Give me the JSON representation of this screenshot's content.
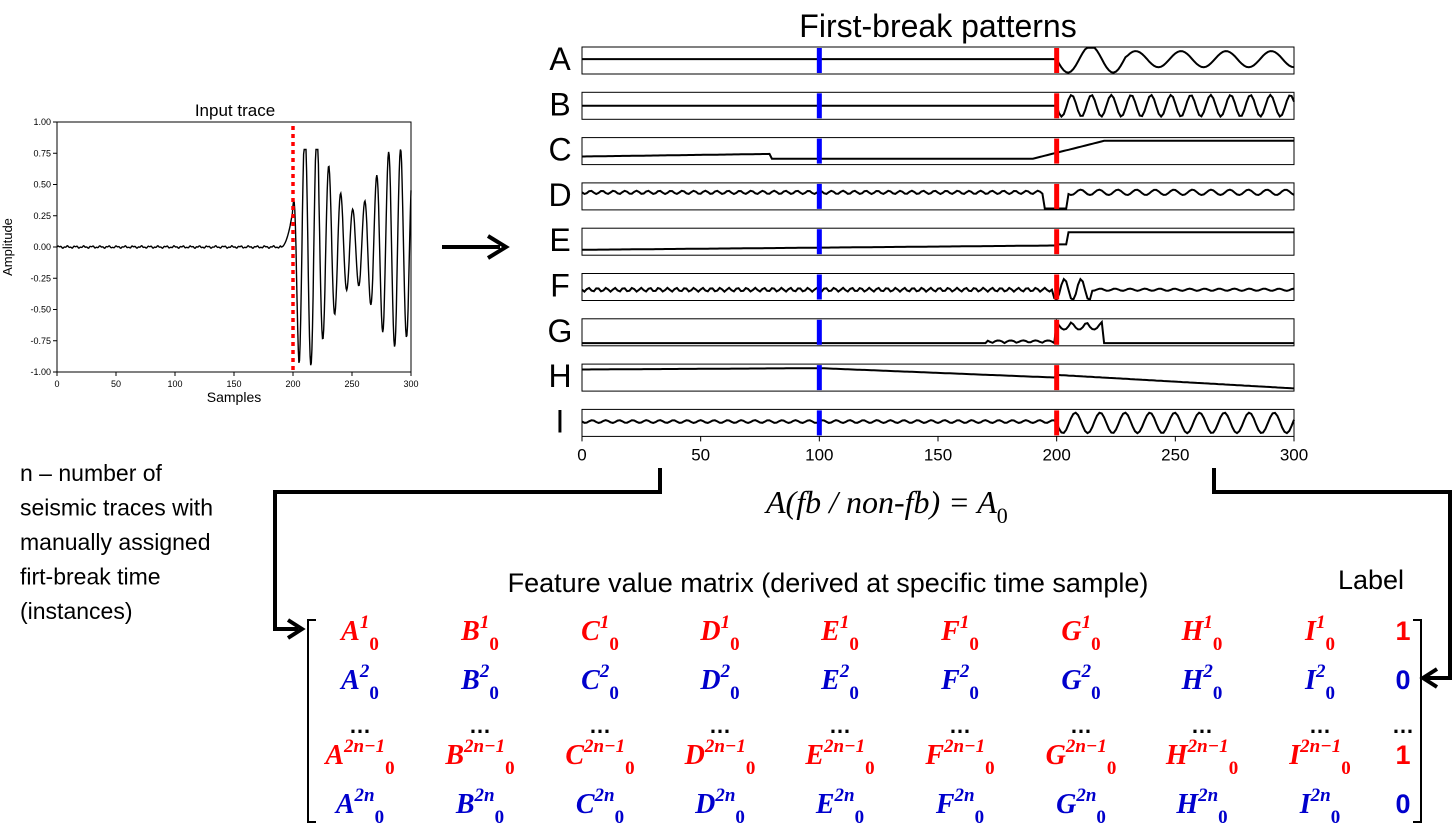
{
  "input_trace": {
    "title": "Input trace",
    "xlabel": "Samples",
    "ylabel": "Amplitude",
    "x_ticks": [
      "0",
      "50",
      "100",
      "150",
      "200",
      "250",
      "300"
    ],
    "y_ticks": [
      "1.00",
      "0.75",
      "0.50",
      "0.25",
      "0.00",
      "-0.25",
      "-0.50",
      "-0.75",
      "-1.00"
    ],
    "first_break_sample": 200,
    "marker_color": "#ff0000"
  },
  "patterns": {
    "title": "First-break patterns",
    "labels": [
      "A",
      "B",
      "C",
      "D",
      "E",
      "F",
      "G",
      "H",
      "I"
    ],
    "x_ticks": [
      "0",
      "50",
      "100",
      "150",
      "200",
      "250",
      "300"
    ],
    "non_fb_sample": 100,
    "fb_sample": 200,
    "non_fb_color": "#0000ff",
    "fb_color": "#ff0000"
  },
  "formula": {
    "lhs": "A(fb / non-fb) = A",
    "sub": "0"
  },
  "note": {
    "lines": [
      "n – number of",
      "seismic traces with",
      "manually assigned",
      "firt-break time",
      "(instances)"
    ]
  },
  "matrix": {
    "title": "Feature value matrix (derived at specific time sample)",
    "label_header": "Label",
    "letters": [
      "A",
      "B",
      "C",
      "D",
      "E",
      "F",
      "G",
      "H",
      "I"
    ],
    "rows": [
      {
        "sup": "1",
        "label": "1",
        "color": "#ff0000"
      },
      {
        "sup": "2",
        "label": "0",
        "color": "#0000cc"
      },
      {
        "sup": "",
        "label": "…",
        "color": "#000000",
        "ellipsis": true
      },
      {
        "sup": "2n−1",
        "label": "1",
        "color": "#ff0000"
      },
      {
        "sup": "2n",
        "label": "0",
        "color": "#0000cc"
      }
    ],
    "ellipsis": "…",
    "sub": "0"
  }
}
